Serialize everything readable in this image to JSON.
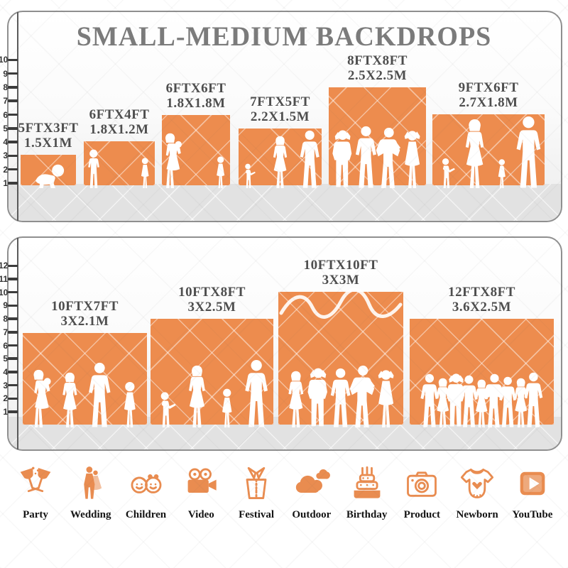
{
  "title": "SMALL-MEDIUM BACKDROPS",
  "panels": [
    {
      "name": "small-medium-backdrops-panel",
      "ruler": {
        "min": 1,
        "max": 10
      },
      "backdrops": [
        {
          "id": "5x3",
          "size_ft": "5FTX3FT",
          "size_m": "1.5X1M",
          "width_ft": 5,
          "height_ft": 3,
          "people": [
            "baby"
          ]
        },
        {
          "id": "6x4",
          "size_ft": "6FTX4FT",
          "size_m": "1.8X1.2M",
          "width_ft": 6,
          "height_ft": 4,
          "people": [
            "boy",
            "girl"
          ]
        },
        {
          "id": "6x6",
          "size_ft": "6FTX6FT",
          "size_m": "1.8X1.8M",
          "width_ft": 6,
          "height_ft": 6,
          "people": [
            "woman-baby",
            "girl"
          ]
        },
        {
          "id": "7x5",
          "size_ft": "7FTX5FT",
          "size_m": "2.2X1.5M",
          "width_ft": 7,
          "height_ft": 5,
          "people": [
            "toddler",
            "woman",
            "man"
          ]
        },
        {
          "id": "8x8",
          "size_ft": "8FTX8FT",
          "size_m": "2.5X2.5M",
          "width_ft": 8,
          "height_ft": 8,
          "people": [
            "man-up",
            "man",
            "man-hips",
            "woman-up"
          ]
        },
        {
          "id": "9x6",
          "size_ft": "9FTX6FT",
          "size_m": "2.7X1.8M",
          "width_ft": 9,
          "height_ft": 6,
          "people": [
            "toddler",
            "woman",
            "girl",
            "man"
          ]
        }
      ]
    },
    {
      "name": "medium-large-backdrops-panel",
      "ruler": {
        "min": 1,
        "max": 12
      },
      "backdrops": [
        {
          "id": "10x7",
          "size_ft": "10FTX7FT",
          "size_m": "3X2.1M",
          "width_ft": 10,
          "height_ft": 7,
          "people": [
            "woman-baby",
            "woman",
            "man",
            "girl"
          ]
        },
        {
          "id": "10x8",
          "size_ft": "10FTX8FT",
          "size_m": "3X2.5M",
          "width_ft": 10,
          "height_ft": 8,
          "people": [
            "toddler",
            "woman",
            "girl",
            "man"
          ]
        },
        {
          "id": "10x10",
          "size_ft": "10FTX10FT",
          "size_m": "3X3M",
          "width_ft": 10,
          "height_ft": 10,
          "people": [
            "woman",
            "man-up",
            "man",
            "man-hips",
            "woman-up"
          ]
        },
        {
          "id": "12x8",
          "size_ft": "12FTX8FT",
          "size_m": "3.6X2.5M",
          "width_ft": 12,
          "height_ft": 8,
          "people": [
            "man",
            "woman",
            "man-up",
            "man",
            "woman",
            "man-hips",
            "man",
            "woman",
            "man"
          ]
        }
      ]
    }
  ],
  "categories": [
    {
      "label": "Party",
      "icon": "party-icon"
    },
    {
      "label": "Wedding",
      "icon": "wedding-icon"
    },
    {
      "label": "Children",
      "icon": "children-icon"
    },
    {
      "label": "Video",
      "icon": "video-icon"
    },
    {
      "label": "Festival",
      "icon": "festival-icon"
    },
    {
      "label": "Outdoor",
      "icon": "outdoor-icon"
    },
    {
      "label": "Birthday",
      "icon": "birthday-icon"
    },
    {
      "label": "Product",
      "icon": "product-icon"
    },
    {
      "label": "Newborn",
      "icon": "newborn-icon"
    },
    {
      "label": "YouTube",
      "icon": "youtube-icon"
    }
  ],
  "colors": {
    "backdrop_orange": "#ED8C4E",
    "icon_orange": "#E98C50",
    "title_gray": "#7B7B7B",
    "label_gray": "#4E4E4E",
    "floor_gray": "#E2E2E2"
  }
}
